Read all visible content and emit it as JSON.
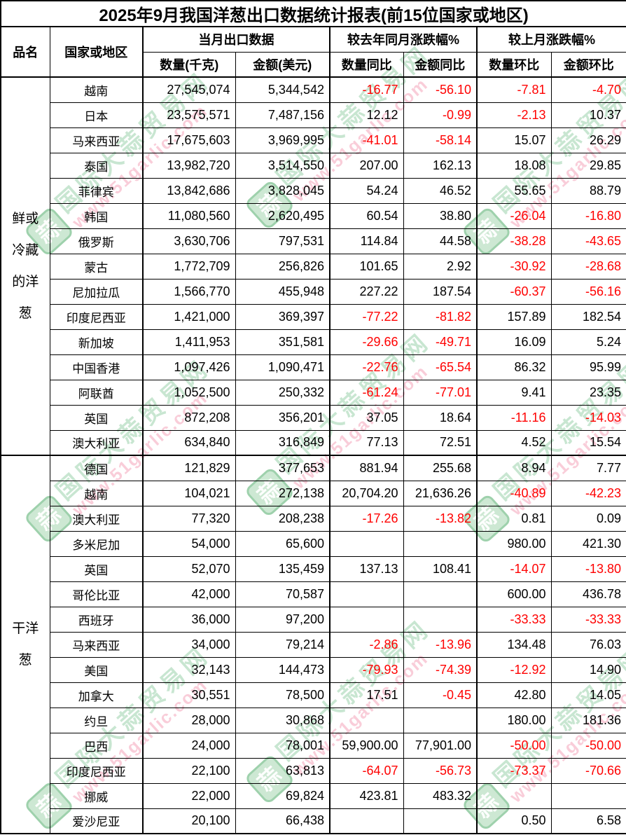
{
  "chart_data": {
    "type": "table",
    "title": "2025年9月我国洋葱出口数据统计报表(前15位国家或地区)",
    "header": {
      "product": "品名",
      "country": "国家或地区",
      "group_current": "当月出口数据",
      "group_yoy": "较去年同月涨跌幅%",
      "group_mom": "较上月涨跌幅%",
      "qty": "数量(千克)",
      "amount": "金额(美元)",
      "qty_yoy": "数量同比",
      "amount_yoy": "金额同比",
      "qty_mom": "数量环比",
      "amount_mom": "金额环比"
    },
    "columns_order": [
      "country",
      "qty",
      "amount",
      "qty_yoy",
      "amount_yoy",
      "qty_mom",
      "amount_mom"
    ],
    "groups": [
      {
        "product": "鲜或冷藏的洋葱",
        "rows": [
          [
            "越南",
            "27,545,074",
            "5,344,542",
            "-16.77",
            "-56.10",
            "-7.81",
            "-4.70"
          ],
          [
            "日本",
            "23,575,571",
            "7,487,156",
            "12.12",
            "-0.99",
            "-2.13",
            "10.37"
          ],
          [
            "马来西亚",
            "17,675,603",
            "3,969,995",
            "-41.01",
            "-58.14",
            "15.07",
            "26.29"
          ],
          [
            "泰国",
            "13,982,720",
            "3,514,550",
            "207.00",
            "162.13",
            "18.08",
            "29.85"
          ],
          [
            "菲律宾",
            "13,842,686",
            "3,828,045",
            "54.24",
            "46.52",
            "55.65",
            "88.79"
          ],
          [
            "韩国",
            "11,080,560",
            "2,620,495",
            "60.54",
            "38.80",
            "-26.04",
            "-16.80"
          ],
          [
            "俄罗斯",
            "3,630,706",
            "797,531",
            "114.84",
            "44.58",
            "-38.28",
            "-43.65"
          ],
          [
            "蒙古",
            "1,772,709",
            "256,826",
            "101.65",
            "2.92",
            "-30.92",
            "-28.68"
          ],
          [
            "尼加拉瓜",
            "1,566,770",
            "455,948",
            "227.22",
            "187.54",
            "-60.37",
            "-56.16"
          ],
          [
            "印度尼西亚",
            "1,421,000",
            "369,397",
            "-77.22",
            "-81.82",
            "157.89",
            "182.54"
          ],
          [
            "新加坡",
            "1,411,953",
            "351,581",
            "-29.66",
            "-49.71",
            "16.09",
            "5.24"
          ],
          [
            "中国香港",
            "1,097,426",
            "1,090,471",
            "-22.76",
            "-65.54",
            "86.32",
            "95.99"
          ],
          [
            "阿联酋",
            "1,052,500",
            "250,332",
            "-61.24",
            "-77.01",
            "9.41",
            "23.35"
          ],
          [
            "英国",
            "872,208",
            "356,201",
            "37.05",
            "18.64",
            "-11.16",
            "-14.03"
          ],
          [
            "澳大利亚",
            "634,840",
            "316,849",
            "77.13",
            "72.51",
            "4.52",
            "15.54"
          ]
        ]
      },
      {
        "product": "干洋葱",
        "rows": [
          [
            "德国",
            "121,829",
            "377,653",
            "881.94",
            "255.68",
            "8.94",
            "7.77"
          ],
          [
            "越南",
            "104,021",
            "272,138",
            "20,704.20",
            "21,636.26",
            "-40.89",
            "-42.23"
          ],
          [
            "澳大利亚",
            "77,320",
            "208,238",
            "-17.26",
            "-13.82",
            "0.81",
            "0.09"
          ],
          [
            "多米尼加",
            "54,000",
            "65,600",
            "",
            "",
            "980.00",
            "421.30"
          ],
          [
            "英国",
            "52,070",
            "135,459",
            "137.13",
            "108.41",
            "-14.07",
            "-13.80"
          ],
          [
            "哥伦比亚",
            "42,000",
            "70,587",
            "",
            "",
            "600.00",
            "436.78"
          ],
          [
            "西班牙",
            "36,000",
            "97,200",
            "",
            "",
            "-33.33",
            "-33.33"
          ],
          [
            "马来西亚",
            "34,000",
            "79,214",
            "-2.86",
            "-13.96",
            "134.48",
            "76.03"
          ],
          [
            "美国",
            "32,143",
            "144,473",
            "-79.93",
            "-74.39",
            "-12.92",
            "14.90"
          ],
          [
            "加拿大",
            "30,551",
            "78,500",
            "17.51",
            "-0.45",
            "42.80",
            "14.05"
          ],
          [
            "约旦",
            "28,000",
            "30,868",
            "",
            "",
            "180.00",
            "181.36"
          ],
          [
            "巴西",
            "24,000",
            "78,001",
            "59,900.00",
            "77,901.00",
            "-50.00",
            "-50.00"
          ],
          [
            "印度尼西亚",
            "22,100",
            "63,813",
            "-64.07",
            "-56.73",
            "-73.37",
            "-70.66"
          ],
          [
            "挪威",
            "22,000",
            "69,824",
            "423.81",
            "483.32",
            "",
            ""
          ],
          [
            "爱沙尼亚",
            "20,100",
            "66,438",
            "",
            "",
            "0.50",
            "6.58"
          ]
        ]
      }
    ],
    "colors": {
      "negative_value": "#ff0000",
      "text": "#000000",
      "border": "#000000",
      "watermark_green": "#7dc391",
      "watermark_pink": "#f396af"
    },
    "layout_hints": {
      "negative_values_shown_in_red": true,
      "numeric_columns_right_aligned": true,
      "rows_per_group": 15
    }
  },
  "watermark": {
    "seal_char": "蒜",
    "site_name": "国际大蒜贸易网",
    "site_url": "www.51garlic.com"
  }
}
